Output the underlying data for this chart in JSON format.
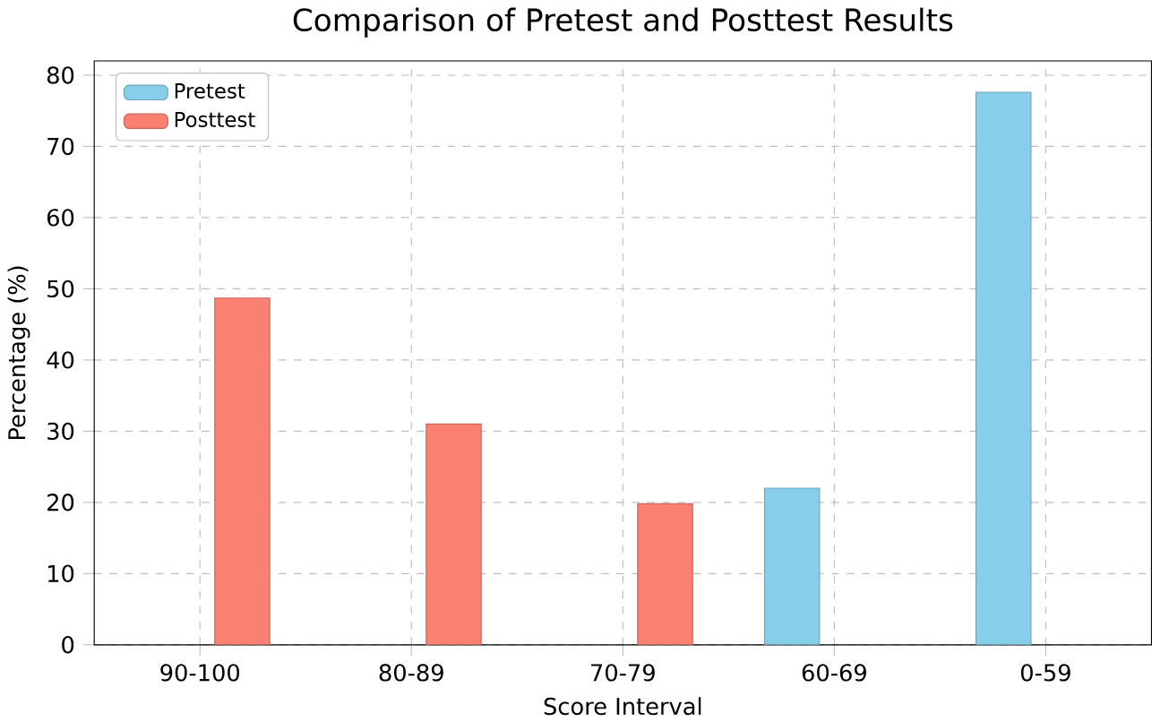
{
  "chart_data": {
    "type": "bar",
    "title": "Comparison of Pretest and Posttest Results",
    "xlabel": "Score Interval",
    "ylabel": "Percentage (%)",
    "categories": [
      "90-100",
      "80-89",
      "70-79",
      "60-69",
      "0-59"
    ],
    "series": [
      {
        "name": "Pretest",
        "color": "#87ceeb",
        "values": [
          null,
          null,
          null,
          22,
          77.6
        ]
      },
      {
        "name": "Posttest",
        "color": "#fa8072",
        "values": [
          48.7,
          31,
          19.8,
          null,
          null
        ]
      }
    ],
    "ylim": [
      0,
      82
    ],
    "yticks": [
      0,
      10,
      20,
      30,
      40,
      50,
      60,
      70,
      80
    ],
    "grid": true,
    "legend": "top left"
  }
}
